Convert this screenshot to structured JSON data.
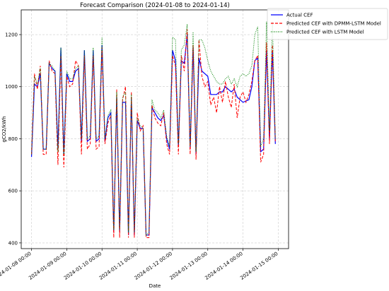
{
  "chart_data": {
    "type": "line",
    "title": "Forecast Comparison (2024-01-08 to 2024-01-14)",
    "xlabel": "Date",
    "ylabel": "gCO2/kWh",
    "x": [
      "2024-01-08 00:00",
      "2024-01-08 02:00",
      "2024-01-08 04:00",
      "2024-01-08 06:00",
      "2024-01-08 08:00",
      "2024-01-08 10:00",
      "2024-01-08 12:00",
      "2024-01-08 14:00",
      "2024-01-08 16:00",
      "2024-01-08 18:00",
      "2024-01-08 20:00",
      "2024-01-08 22:00",
      "2024-01-09 00:00",
      "2024-01-09 02:00",
      "2024-01-09 04:00",
      "2024-01-09 06:00",
      "2024-01-09 08:00",
      "2024-01-09 10:00",
      "2024-01-09 12:00",
      "2024-01-09 14:00",
      "2024-01-09 16:00",
      "2024-01-09 18:00",
      "2024-01-09 20:00",
      "2024-01-09 22:00",
      "2024-01-10 00:00",
      "2024-01-10 02:00",
      "2024-01-10 04:00",
      "2024-01-10 06:00",
      "2024-01-10 08:00",
      "2024-01-10 10:00",
      "2024-01-10 12:00",
      "2024-01-10 14:00",
      "2024-01-10 16:00",
      "2024-01-10 18:00",
      "2024-01-10 20:00",
      "2024-01-10 22:00",
      "2024-01-11 00:00",
      "2024-01-11 02:00",
      "2024-01-11 04:00",
      "2024-01-11 06:00",
      "2024-01-11 08:00",
      "2024-01-11 10:00",
      "2024-01-11 12:00",
      "2024-01-11 14:00",
      "2024-01-11 16:00",
      "2024-01-11 18:00",
      "2024-01-11 20:00",
      "2024-01-11 22:00",
      "2024-01-12 00:00",
      "2024-01-12 02:00",
      "2024-01-12 04:00",
      "2024-01-12 06:00",
      "2024-01-12 08:00",
      "2024-01-12 10:00",
      "2024-01-12 12:00",
      "2024-01-12 14:00",
      "2024-01-12 16:00",
      "2024-01-12 18:00",
      "2024-01-12 20:00",
      "2024-01-12 22:00",
      "2024-01-13 00:00",
      "2024-01-13 02:00",
      "2024-01-13 04:00",
      "2024-01-13 06:00",
      "2024-01-13 08:00",
      "2024-01-13 10:00",
      "2024-01-13 12:00",
      "2024-01-13 14:00",
      "2024-01-13 16:00",
      "2024-01-13 18:00",
      "2024-01-13 20:00",
      "2024-01-13 22:00",
      "2024-01-14 00:00",
      "2024-01-14 02:00",
      "2024-01-14 04:00",
      "2024-01-14 06:00",
      "2024-01-14 08:00",
      "2024-01-14 10:00",
      "2024-01-14 12:00",
      "2024-01-14 14:00",
      "2024-01-14 16:00",
      "2024-01-14 18:00",
      "2024-01-14 20:00",
      "2024-01-14 22:00"
    ],
    "series": [
      {
        "name": "Actual CEF",
        "color": "#0000ff",
        "style": "solid",
        "values": [
          730,
          1010,
          1000,
          1050,
          760,
          760,
          1090,
          1070,
          1060,
          760,
          1150,
          740,
          1050,
          1020,
          1020,
          1060,
          1070,
          790,
          1140,
          790,
          800,
          1140,
          790,
          800,
          1160,
          790,
          880,
          900,
          440,
          960,
          440,
          940,
          940,
          430,
          960,
          430,
          870,
          840,
          840,
          430,
          430,
          920,
          900,
          880,
          870,
          890,
          800,
          760,
          1140,
          1100,
          770,
          1100,
          1090,
          1200,
          760,
          1150,
          740,
          1110,
          1060,
          1050,
          1040,
          970,
          970,
          970,
          980,
          980,
          1000,
          990,
          980,
          990,
          960,
          950,
          940,
          945,
          950,
          1000,
          1100,
          1110,
          750,
          760,
          1140,
          800,
          1140,
          780
        ]
      },
      {
        "name": "Predicted CEF with DPMM-LSTM Model",
        "color": "#ff0000",
        "style": "dashed",
        "values": [
          740,
          1050,
          990,
          1080,
          740,
          740,
          1100,
          1060,
          1050,
          700,
          1120,
          690,
          1040,
          1000,
          1010,
          1100,
          1080,
          740,
          1120,
          760,
          780,
          1120,
          760,
          770,
          1150,
          780,
          860,
          890,
          420,
          990,
          420,
          950,
          1000,
          420,
          980,
          420,
          900,
          830,
          850,
          420,
          420,
          930,
          880,
          860,
          850,
          900,
          780,
          740,
          1120,
          1080,
          740,
          1120,
          1060,
          1220,
          740,
          1160,
          720,
          1180,
          1040,
          1000,
          1020,
          930,
          960,
          900,
          1000,
          940,
          1020,
          960,
          920,
          1010,
          880,
          960,
          980,
          940,
          970,
          1020,
          1100,
          1120,
          710,
          740,
          1170,
          780,
          1160,
          790
        ]
      },
      {
        "name": "Predicted CEF with LSTM Model",
        "color": "#008000",
        "style": "dotted",
        "values": [
          740,
          1040,
          1010,
          1070,
          760,
          760,
          1090,
          1080,
          1060,
          750,
          1150,
          740,
          1060,
          1030,
          1030,
          1070,
          1080,
          800,
          1140,
          800,
          810,
          1150,
          800,
          810,
          1190,
          800,
          890,
          910,
          450,
          980,
          450,
          960,
          980,
          440,
          970,
          440,
          880,
          850,
          840,
          430,
          440,
          950,
          910,
          900,
          880,
          910,
          810,
          770,
          1190,
          1180,
          780,
          1140,
          1160,
          1240,
          770,
          1210,
          750,
          1180,
          1180,
          1150,
          1100,
          1060,
          1040,
          1020,
          1010,
          1010,
          1030,
          1040,
          1010,
          1030,
          1000,
          1040,
          1050,
          1040,
          1050,
          1080,
          1200,
          1230,
          770,
          800,
          1250,
          830,
          1250,
          800
        ]
      }
    ],
    "xlim": [
      "2024-01-07 17:00",
      "2024-01-15 07:00"
    ],
    "xticks": [
      "2024-01-08 00:00",
      "2024-01-09 00:00",
      "2024-01-10 00:00",
      "2024-01-11 00:00",
      "2024-01-12 00:00",
      "2024-01-13 00:00",
      "2024-01-14 00:00",
      "2024-01-15 00:00"
    ],
    "ylim": [
      378,
      1295
    ],
    "yticks": [
      400,
      600,
      800,
      1000,
      1200
    ],
    "grid": true,
    "legend": "upper right"
  }
}
